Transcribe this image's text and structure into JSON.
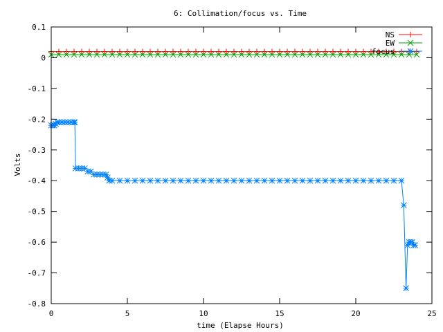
{
  "chart_data": {
    "type": "line",
    "title": "6: Collimation/focus vs. Time",
    "xlabel": "time (Elapse Hours)",
    "ylabel": "Volts",
    "xlim": [
      0,
      25
    ],
    "ylim": [
      -0.8,
      0.1
    ],
    "xticks": [
      0,
      5,
      10,
      15,
      20,
      25
    ],
    "xtick_labels": [
      "0",
      "5",
      "10",
      "15",
      "20",
      "25"
    ],
    "yticks": [
      0.1,
      0,
      -0.1,
      -0.2,
      -0.3,
      -0.4,
      -0.5,
      -0.6,
      -0.7,
      -0.8
    ],
    "ytick_labels": [
      "0.1",
      "0",
      "-0.1",
      "-0.2",
      "-0.3",
      "-0.4",
      "-0.5",
      "-0.6",
      "-0.7",
      "-0.8"
    ],
    "grid": false,
    "legend_position": "top-right",
    "series": [
      {
        "name": "NS",
        "color": "#ff0000",
        "marker": "plus",
        "x": [
          0.0,
          0.5,
          1.0,
          1.5,
          2.0,
          2.5,
          3.0,
          3.5,
          4.0,
          4.5,
          5.0,
          5.5,
          6.0,
          6.5,
          7.0,
          7.5,
          8.0,
          8.5,
          9.0,
          9.5,
          10.0,
          10.5,
          11.0,
          11.5,
          12.0,
          12.5,
          13.0,
          13.5,
          14.0,
          14.5,
          15.0,
          15.5,
          16.0,
          16.5,
          17.0,
          17.5,
          18.0,
          18.5,
          19.0,
          19.5,
          20.0,
          20.5,
          21.0,
          21.5,
          22.0,
          22.5,
          23.0,
          23.5,
          24.0
        ],
        "y": [
          0.02,
          0.02,
          0.02,
          0.02,
          0.02,
          0.02,
          0.02,
          0.02,
          0.02,
          0.02,
          0.02,
          0.02,
          0.02,
          0.02,
          0.02,
          0.02,
          0.02,
          0.02,
          0.02,
          0.02,
          0.02,
          0.02,
          0.02,
          0.02,
          0.02,
          0.02,
          0.02,
          0.02,
          0.02,
          0.02,
          0.02,
          0.02,
          0.02,
          0.02,
          0.02,
          0.02,
          0.02,
          0.02,
          0.02,
          0.02,
          0.02,
          0.02,
          0.02,
          0.02,
          0.02,
          0.02,
          0.02,
          0.02,
          0.02
        ]
      },
      {
        "name": "EW",
        "color": "#00a000",
        "marker": "cross",
        "x": [
          0.0,
          0.5,
          1.0,
          1.5,
          2.0,
          2.5,
          3.0,
          3.5,
          4.0,
          4.5,
          5.0,
          5.5,
          6.0,
          6.5,
          7.0,
          7.5,
          8.0,
          8.5,
          9.0,
          9.5,
          10.0,
          10.5,
          11.0,
          11.5,
          12.0,
          12.5,
          13.0,
          13.5,
          14.0,
          14.5,
          15.0,
          15.5,
          16.0,
          16.5,
          17.0,
          17.5,
          18.0,
          18.5,
          19.0,
          19.5,
          20.0,
          20.5,
          21.0,
          21.5,
          22.0,
          22.5,
          23.0,
          23.5,
          24.0
        ],
        "y": [
          0.01,
          0.01,
          0.01,
          0.01,
          0.01,
          0.01,
          0.01,
          0.01,
          0.01,
          0.01,
          0.01,
          0.01,
          0.01,
          0.01,
          0.01,
          0.01,
          0.01,
          0.01,
          0.01,
          0.01,
          0.01,
          0.01,
          0.01,
          0.01,
          0.01,
          0.01,
          0.01,
          0.01,
          0.01,
          0.01,
          0.01,
          0.01,
          0.01,
          0.01,
          0.01,
          0.01,
          0.01,
          0.01,
          0.01,
          0.01,
          0.01,
          0.01,
          0.01,
          0.01,
          0.01,
          0.01,
          0.01,
          0.01,
          0.01
        ]
      },
      {
        "name": "focus",
        "color": "#0080ff",
        "marker": "star",
        "x": [
          0.0,
          0.1,
          0.2,
          0.3,
          0.4,
          0.5,
          0.7,
          0.9,
          1.1,
          1.3,
          1.5,
          1.55,
          1.6,
          1.8,
          2.0,
          2.2,
          2.4,
          2.6,
          2.8,
          3.0,
          3.2,
          3.4,
          3.6,
          3.7,
          3.8,
          4.0,
          4.5,
          5.0,
          5.5,
          6.0,
          6.5,
          7.0,
          7.5,
          8.0,
          8.5,
          9.0,
          9.5,
          10.0,
          10.5,
          11.0,
          11.5,
          12.0,
          12.5,
          13.0,
          13.5,
          14.0,
          14.5,
          15.0,
          15.5,
          16.0,
          16.5,
          17.0,
          17.5,
          18.0,
          18.5,
          19.0,
          19.5,
          20.0,
          20.5,
          21.0,
          21.5,
          22.0,
          22.5,
          23.0,
          23.15,
          23.3,
          23.4,
          23.5,
          23.6,
          23.7,
          23.8,
          23.9
        ],
        "y": [
          -0.22,
          -0.22,
          -0.22,
          -0.215,
          -0.21,
          -0.21,
          -0.21,
          -0.21,
          -0.21,
          -0.21,
          -0.21,
          -0.21,
          -0.36,
          -0.36,
          -0.36,
          -0.36,
          -0.37,
          -0.37,
          -0.38,
          -0.38,
          -0.38,
          -0.38,
          -0.38,
          -0.39,
          -0.4,
          -0.4,
          -0.4,
          -0.4,
          -0.4,
          -0.4,
          -0.4,
          -0.4,
          -0.4,
          -0.4,
          -0.4,
          -0.4,
          -0.4,
          -0.4,
          -0.4,
          -0.4,
          -0.4,
          -0.4,
          -0.4,
          -0.4,
          -0.4,
          -0.4,
          -0.4,
          -0.4,
          -0.4,
          -0.4,
          -0.4,
          -0.4,
          -0.4,
          -0.4,
          -0.4,
          -0.4,
          -0.4,
          -0.4,
          -0.4,
          -0.4,
          -0.4,
          -0.4,
          -0.4,
          -0.4,
          -0.48,
          -0.75,
          -0.61,
          -0.6,
          -0.6,
          -0.6,
          -0.61,
          -0.61
        ]
      }
    ]
  }
}
